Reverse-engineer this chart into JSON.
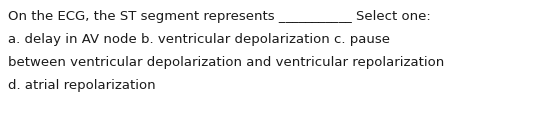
{
  "background_color": "#ffffff",
  "text_lines": [
    "On the ECG, the ST segment represents ___________ Select one:",
    "a. delay in AV node b. ventricular depolarization c. pause",
    "between ventricular depolarization and ventricular repolarization",
    "d. atrial repolarization"
  ],
  "font_size": 9.5,
  "font_color": "#1a1a1a",
  "font_family": "DejaVu Sans",
  "fig_width": 5.58,
  "fig_height": 1.26,
  "dpi": 100
}
